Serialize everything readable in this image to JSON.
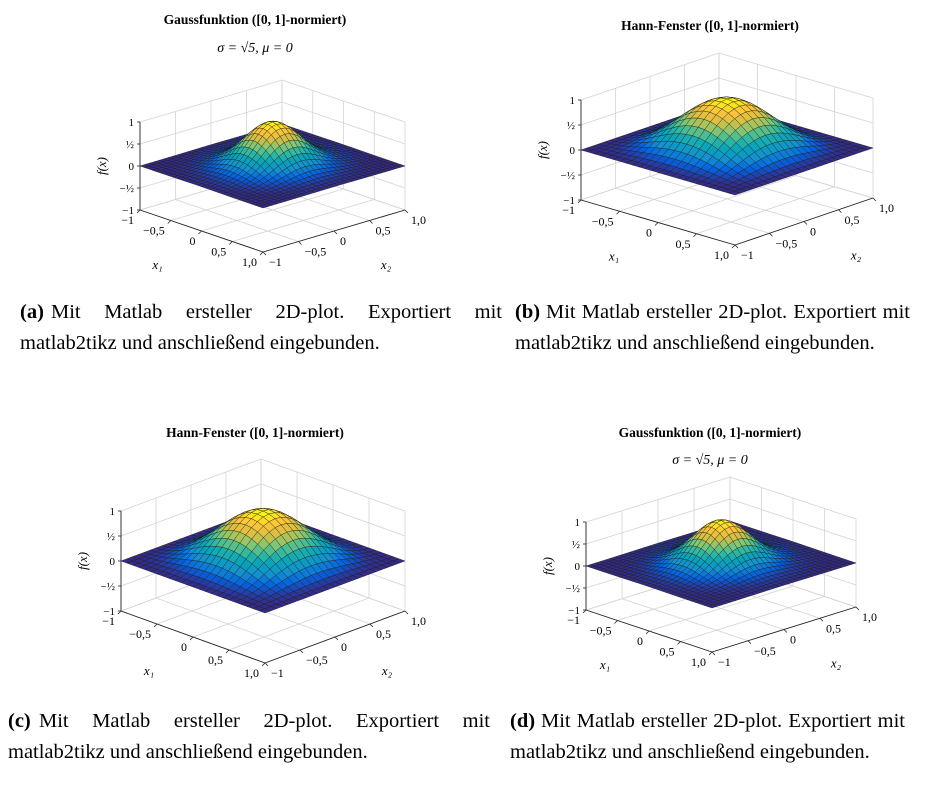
{
  "chart_data": [
    {
      "id": "a",
      "type": "surface",
      "function": "gauss",
      "title_bold": "Gaussfunktion",
      "title_paren": "([0, 1]-normiert)",
      "subtitle": "σ = √5, μ = 0",
      "xlabel": "x₁",
      "ylabel": "x₂",
      "zlabel": "f(x)",
      "xticks": [
        "−1",
        "−0,5",
        "0",
        "0,5",
        "1,0"
      ],
      "yticks": [
        "−1",
        "−0,5",
        "0",
        "0,5",
        "1,0"
      ],
      "zticks": [
        "1",
        "½",
        "0",
        "−½",
        "−1"
      ],
      "xlim": [
        -1,
        1
      ],
      "ylim": [
        -1,
        1
      ],
      "zlim": [
        -1,
        1
      ],
      "grid": true,
      "colormap": "parula",
      "caption_label": "(a)",
      "caption": "Mit Matlab ersteller 2D-plot. Exportiert mit matlab2tikz und anschließend eingebunden."
    },
    {
      "id": "b",
      "type": "surface",
      "function": "hann",
      "title_bold": "Hann-Fenster",
      "title_paren": "([0, 1]-normiert)",
      "subtitle": "",
      "xlabel": "x₁",
      "ylabel": "x₂",
      "zlabel": "f(x)",
      "xticks": [
        "−1",
        "−0,5",
        "0",
        "0,5",
        "1,0"
      ],
      "yticks": [
        "−1",
        "−0,5",
        "0",
        "0,5",
        "1,0"
      ],
      "zticks": [
        "1",
        "½",
        "0",
        "−½",
        "−1"
      ],
      "xlim": [
        -1,
        1
      ],
      "ylim": [
        -1,
        1
      ],
      "zlim": [
        -1,
        1
      ],
      "grid": true,
      "colormap": "parula",
      "caption_label": "(b)",
      "caption": "Mit Matlab ersteller 2D-plot. Exportiert mit matlab2tikz und anschließend eingebunden."
    },
    {
      "id": "c",
      "type": "surface",
      "function": "hann",
      "title_bold": "Hann-Fenster",
      "title_paren": "([0, 1]-normiert)",
      "subtitle": "",
      "xlabel": "x₁",
      "ylabel": "x₂",
      "zlabel": "f(x)",
      "xticks": [
        "−1",
        "−0,5",
        "0",
        "0,5",
        "1,0"
      ],
      "yticks": [
        "−1",
        "−0,5",
        "0",
        "0,5",
        "1,0"
      ],
      "zticks": [
        "1",
        "½",
        "0",
        "−½",
        "−1"
      ],
      "xlim": [
        -1,
        1
      ],
      "ylim": [
        -1,
        1
      ],
      "zlim": [
        -1,
        1
      ],
      "grid": true,
      "colormap": "parula",
      "caption_label": "(c)",
      "caption": "Mit Matlab ersteller 2D-plot. Exportiert mit matlab2tikz und anschließend eingebunden."
    },
    {
      "id": "d",
      "type": "surface",
      "function": "gauss",
      "title_bold": "Gaussfunktion",
      "title_paren": "([0, 1]-normiert)",
      "subtitle": "σ = √5, μ = 0",
      "xlabel": "x₁",
      "ylabel": "x₂",
      "zlabel": "f(x)",
      "xticks": [
        "−1",
        "−0,5",
        "0",
        "0,5",
        "1,0"
      ],
      "yticks": [
        "−1",
        "−0,5",
        "0",
        "0,5",
        "1,0"
      ],
      "zticks": [
        "1",
        "½",
        "0",
        "−½",
        "−1"
      ],
      "xlim": [
        -1,
        1
      ],
      "ylim": [
        -1,
        1
      ],
      "zlim": [
        -1,
        1
      ],
      "grid": true,
      "colormap": "parula",
      "caption_label": "(d)",
      "caption": "Mit Matlab ersteller 2D-plot. Exportiert mit matlab2tikz und anschließend eingebunden."
    }
  ]
}
